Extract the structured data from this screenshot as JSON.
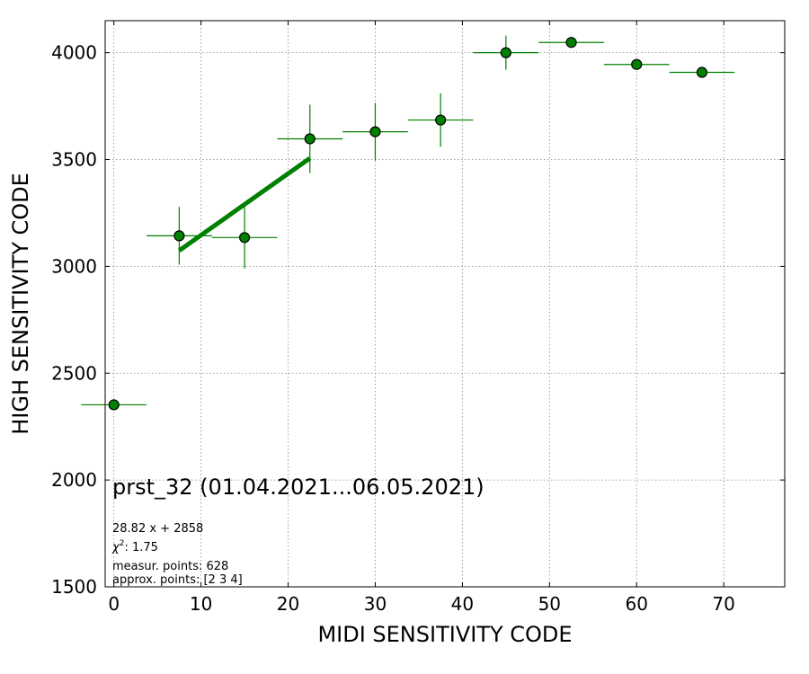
{
  "chart_data": {
    "type": "scatter",
    "title": "prst_32 (01.04.2021...06.05.2021)",
    "xlabel": "MIDI SENSITIVITY CODE",
    "ylabel": "HIGH SENSITIVITY CODE",
    "xlim": [
      -1,
      77
    ],
    "ylim": [
      1500,
      4150
    ],
    "xticks": [
      0,
      10,
      20,
      30,
      40,
      50,
      60,
      70
    ],
    "yticks": [
      1500,
      2000,
      2500,
      3000,
      3500,
      4000
    ],
    "grid": true,
    "series": [
      {
        "type": "errorbar",
        "color": "#008000",
        "marker_edge": "#000000",
        "points": [
          {
            "x": 0,
            "y": 2352,
            "xerr": 3.75,
            "yerr": 0
          },
          {
            "x": 7.5,
            "y": 3143,
            "xerr": 3.75,
            "yerr": 135
          },
          {
            "x": 15,
            "y": 3135,
            "xerr": 3.75,
            "yerr": 145
          },
          {
            "x": 22.5,
            "y": 3597,
            "xerr": 3.75,
            "yerr": 160
          },
          {
            "x": 30,
            "y": 3630,
            "xerr": 3.75,
            "yerr": 135
          },
          {
            "x": 37.5,
            "y": 3685,
            "xerr": 3.75,
            "yerr": 125
          },
          {
            "x": 45,
            "y": 4000,
            "xerr": 3.75,
            "yerr": 80
          },
          {
            "x": 52.5,
            "y": 4048,
            "xerr": 3.75,
            "yerr": 0
          },
          {
            "x": 60,
            "y": 3945,
            "xerr": 3.75,
            "yerr": 0
          },
          {
            "x": 67.5,
            "y": 3908,
            "xerr": 3.75,
            "yerr": 0
          }
        ]
      },
      {
        "type": "line",
        "color": "#008000",
        "x": [
          7.5,
          22.5
        ],
        "y": [
          3074,
          3506
        ]
      }
    ],
    "annotations": {
      "fit": "28.82 x + 2858",
      "chi_symbol": "χ",
      "chi_sup": "2",
      "chi_value": ": 1.75",
      "measured": "measur. points: 628",
      "approx": "approx. points: [2 3 4]"
    }
  }
}
